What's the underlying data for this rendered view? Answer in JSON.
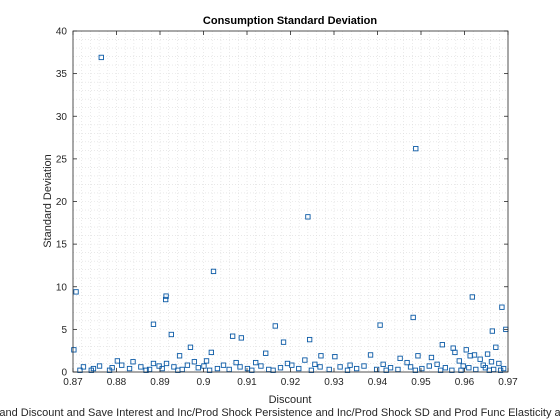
{
  "chart_data": {
    "type": "scatter",
    "title": "Consumption Standard Deviation",
    "xlabel": "Discount",
    "ylabel": "Standard Deviation",
    "footer": "and Discount and Save Interest and Inc/Prod Shock Persistence and Inc/Prod Shock SD and Prod Func Elasticity a",
    "xlim": [
      0.87,
      0.97
    ],
    "ylim": [
      0,
      40
    ],
    "xticks": [
      "0.87",
      "0.88",
      "0.89",
      "0.9",
      "0.91",
      "0.92",
      "0.93",
      "0.94",
      "0.95",
      "0.96",
      "0.97"
    ],
    "yticks": [
      "0",
      "5",
      "10",
      "15",
      "20",
      "25",
      "30",
      "35",
      "40"
    ],
    "grid": "minor-dotted",
    "marker": "square",
    "colors": {
      "marker": "#0b5aa6",
      "axes": "#262626",
      "grid": "#dcdcdc"
    },
    "points": [
      [
        0.8765,
        36.9
      ],
      [
        0.9488,
        26.2
      ],
      [
        0.924,
        18.2
      ],
      [
        0.9023,
        11.8
      ],
      [
        0.8707,
        9.4
      ],
      [
        0.8914,
        8.9
      ],
      [
        0.8913,
        8.5
      ],
      [
        0.9618,
        8.8
      ],
      [
        0.9686,
        7.6
      ],
      [
        0.9482,
        6.4
      ],
      [
        0.8885,
        5.6
      ],
      [
        0.9165,
        5.4
      ],
      [
        0.9406,
        5.5
      ],
      [
        0.9695,
        5.0
      ],
      [
        0.9664,
        4.8
      ],
      [
        0.8926,
        4.4
      ],
      [
        0.9067,
        4.2
      ],
      [
        0.9087,
        4.0
      ],
      [
        0.9244,
        3.8
      ],
      [
        0.9184,
        3.5
      ],
      [
        0.9549,
        3.2
      ],
      [
        0.9672,
        2.9
      ],
      [
        0.897,
        2.9
      ],
      [
        0.9574,
        2.8
      ],
      [
        0.9604,
        2.6
      ],
      [
        0.8702,
        2.6
      ],
      [
        0.9018,
        2.3
      ],
      [
        0.9143,
        2.2
      ],
      [
        0.9384,
        2.0
      ],
      [
        0.927,
        1.9
      ],
      [
        0.9493,
        1.9
      ],
      [
        0.8945,
        1.9
      ],
      [
        0.9623,
        2.0
      ],
      [
        0.9578,
        2.3
      ],
      [
        0.9653,
        2.1
      ],
      [
        0.9524,
        1.7
      ],
      [
        0.9613,
        1.9
      ],
      [
        0.9452,
        1.6
      ],
      [
        0.9302,
        1.8
      ],
      [
        0.9233,
        1.4
      ],
      [
        0.8802,
        1.3
      ],
      [
        0.8838,
        1.2
      ],
      [
        0.8885,
        1.0
      ],
      [
        0.8915,
        1.0
      ],
      [
        0.8979,
        1.2
      ],
      [
        0.9007,
        1.3
      ],
      [
        0.9075,
        1.1
      ],
      [
        0.912,
        1.1
      ],
      [
        0.9193,
        1.0
      ],
      [
        0.9256,
        0.9
      ],
      [
        0.9337,
        0.8
      ],
      [
        0.9413,
        0.9
      ],
      [
        0.9468,
        1.1
      ],
      [
        0.9537,
        0.9
      ],
      [
        0.9588,
        1.3
      ],
      [
        0.9636,
        1.5
      ],
      [
        0.9662,
        1.2
      ],
      [
        0.9679,
        1.0
      ],
      [
        0.9643,
        0.8
      ],
      [
        0.9597,
        0.7
      ],
      [
        0.8724,
        0.6
      ],
      [
        0.8747,
        0.4
      ],
      [
        0.8761,
        0.7
      ],
      [
        0.879,
        0.5
      ],
      [
        0.8812,
        0.8
      ],
      [
        0.883,
        0.4
      ],
      [
        0.8856,
        0.6
      ],
      [
        0.8876,
        0.3
      ],
      [
        0.8898,
        0.7
      ],
      [
        0.8905,
        0.4
      ],
      [
        0.8932,
        0.6
      ],
      [
        0.8951,
        0.3
      ],
      [
        0.8963,
        0.8
      ],
      [
        0.8988,
        0.5
      ],
      [
        0.9001,
        0.7
      ],
      [
        0.9032,
        0.4
      ],
      [
        0.9046,
        0.8
      ],
      [
        0.9059,
        0.3
      ],
      [
        0.9084,
        0.6
      ],
      [
        0.9101,
        0.4
      ],
      [
        0.9132,
        0.7
      ],
      [
        0.915,
        0.3
      ],
      [
        0.9177,
        0.5
      ],
      [
        0.9203,
        0.8
      ],
      [
        0.9219,
        0.4
      ],
      [
        0.9268,
        0.6
      ],
      [
        0.9289,
        0.3
      ],
      [
        0.9314,
        0.6
      ],
      [
        0.9352,
        0.4
      ],
      [
        0.9369,
        0.7
      ],
      [
        0.9398,
        0.3
      ],
      [
        0.943,
        0.5
      ],
      [
        0.9447,
        0.3
      ],
      [
        0.9476,
        0.6
      ],
      [
        0.9502,
        0.4
      ],
      [
        0.9519,
        0.7
      ],
      [
        0.9556,
        0.5
      ],
      [
        0.9571,
        0.2
      ],
      [
        0.961,
        0.5
      ],
      [
        0.9626,
        0.3
      ],
      [
        0.9648,
        0.5
      ],
      [
        0.9667,
        0.3
      ],
      [
        0.969,
        0.4
      ],
      [
        0.8716,
        0.2
      ],
      [
        0.8742,
        0.2
      ],
      [
        0.8784,
        0.2
      ],
      [
        0.8868,
        0.2
      ],
      [
        0.8941,
        0.2
      ],
      [
        0.9014,
        0.2
      ],
      [
        0.9111,
        0.2
      ],
      [
        0.916,
        0.2
      ],
      [
        0.9248,
        0.2
      ],
      [
        0.9331,
        0.2
      ],
      [
        0.942,
        0.2
      ],
      [
        0.9487,
        0.2
      ],
      [
        0.9545,
        0.2
      ],
      [
        0.9592,
        0.2
      ],
      [
        0.9657,
        0.2
      ],
      [
        0.9683,
        0.2
      ]
    ]
  }
}
